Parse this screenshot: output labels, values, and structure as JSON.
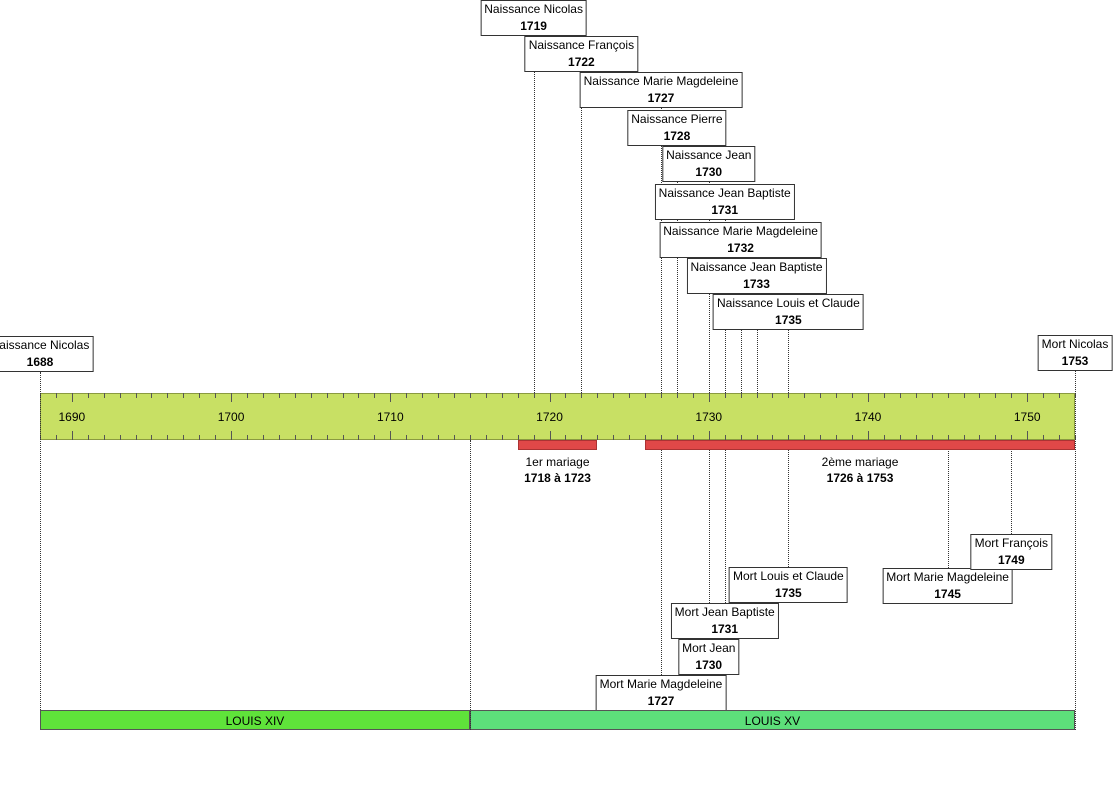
{
  "timeline": {
    "xlim": [
      1688,
      1753
    ],
    "ticks": [
      1690,
      1700,
      1710,
      1720,
      1730,
      1740,
      1750
    ]
  },
  "events_above": [
    {
      "label": "Naissance Nicolas",
      "year": 1719
    },
    {
      "label": "Naissance François",
      "year": 1722
    },
    {
      "label": "Naissance Marie Magdeleine",
      "year": 1727
    },
    {
      "label": "Naissance Pierre",
      "year": 1728
    },
    {
      "label": "Naissance Jean",
      "year": 1730
    },
    {
      "label": "Naissance Jean Baptiste",
      "year": 1731
    },
    {
      "label": "Naissance Marie Magdeleine",
      "year": 1732
    },
    {
      "label": "Naissance Jean Baptiste",
      "year": 1733
    },
    {
      "label": "Naissance Louis et Claude",
      "year": 1735
    }
  ],
  "bounds": [
    {
      "label": "Naissance Nicolas",
      "year": 1688
    },
    {
      "label": "Mort Nicolas",
      "year": 1753
    }
  ],
  "events_below": [
    {
      "label": "Mort Marie Magdeleine",
      "year": 1727
    },
    {
      "label": "Mort Jean",
      "year": 1730
    },
    {
      "label": "Mort Jean Baptiste",
      "year": 1731
    },
    {
      "label": "Mort Louis et Claude",
      "year": 1735
    },
    {
      "label": "Mort Marie Magdeleine",
      "year": 1745
    },
    {
      "label": "Mort François",
      "year": 1749
    }
  ],
  "marriages": [
    {
      "label": "1er mariage",
      "period": "1718 à 1723",
      "start": 1718,
      "end": 1723
    },
    {
      "label": "2ème mariage",
      "period": "1726 à 1753",
      "start": 1726,
      "end": 1753
    }
  ],
  "reigns": [
    {
      "label": "LOUIS XIV",
      "start": 1688,
      "end": 1715,
      "color": "#5fe33a"
    },
    {
      "label": "LOUIS XV",
      "start": 1715,
      "end": 1753,
      "color": "#5ddf7a"
    }
  ]
}
